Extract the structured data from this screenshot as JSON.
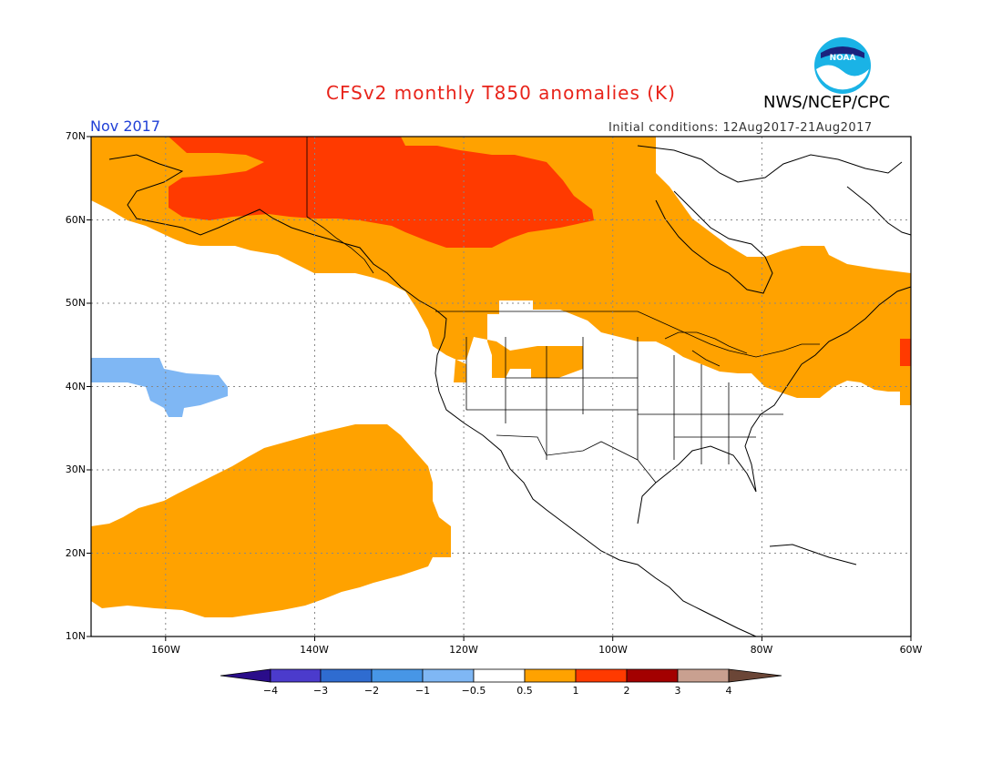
{
  "header": {
    "title": "CFSv2 monthly T850 anomalies (K)",
    "agency": "NWS/NCEP/CPC",
    "month": "Nov 2017",
    "initial_conditions": "Initial conditions: 12Aug2017-21Aug2017",
    "logo_text": "NOAA"
  },
  "axes": {
    "lat_labels": [
      "70N",
      "60N",
      "50N",
      "40N",
      "30N",
      "20N",
      "10N"
    ],
    "lon_labels": [
      "160W",
      "140W",
      "120W",
      "100W",
      "80W",
      "60W"
    ],
    "lat_range": [
      10,
      70
    ],
    "lon_range": [
      -170,
      -60
    ]
  },
  "colorbar": {
    "labels": [
      "−4",
      "−3",
      "−2",
      "−1",
      "−0.5",
      "0.5",
      "1",
      "2",
      "3",
      "4"
    ],
    "colors": [
      "#2a0d8a",
      "#4b3bcc",
      "#2f6cd0",
      "#4796e6",
      "#7fb7f4",
      "#ffffff",
      "#ffa200",
      "#ff3a00",
      "#a30000",
      "#c9a090",
      "#6b4637"
    ]
  },
  "colors": {
    "anomaly_0_5_to_1": "#ffa200",
    "anomaly_1_to_2": "#ff3a00",
    "anomaly_neg_0_5_to_neg_1": "#7fb7f4",
    "title": "#e8231a",
    "month": "#1f3fd6"
  }
}
